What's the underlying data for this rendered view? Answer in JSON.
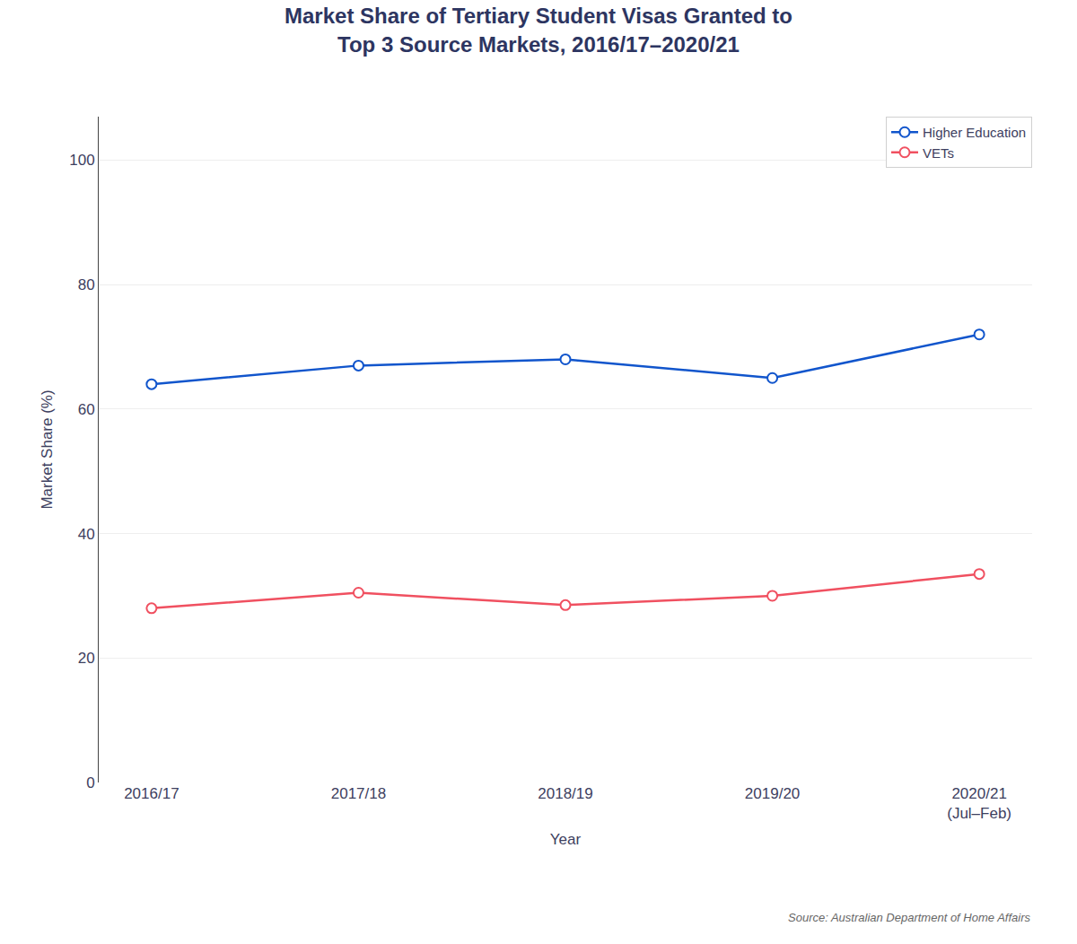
{
  "chart_data": {
    "type": "line",
    "title": "Market Share of Tertiary Student Visas Granted to\nTop 3 Source Markets, 2016/17–2020/21",
    "xlabel": "Year",
    "ylabel": "Market Share (%)",
    "categories": [
      "2016/17",
      "2017/18",
      "2018/19",
      "2019/20",
      "2020/21\n(Jul–Feb)"
    ],
    "series": [
      {
        "name": "Higher Education",
        "color": "#1155cc",
        "marker": "circle",
        "values": [
          64.0,
          67.0,
          68.0,
          65.0,
          72.0
        ]
      },
      {
        "name": "VETs",
        "color": "#f05060",
        "marker": "circle",
        "values": [
          28.0,
          30.5,
          28.5,
          30.0,
          33.5
        ]
      }
    ],
    "ylim": [
      0,
      107
    ],
    "yticks": [
      0,
      20,
      40,
      60,
      80,
      100
    ],
    "grid": true,
    "legend": "upper right",
    "annotations": [
      "Source: Australian Department of Home Affairs"
    ]
  }
}
